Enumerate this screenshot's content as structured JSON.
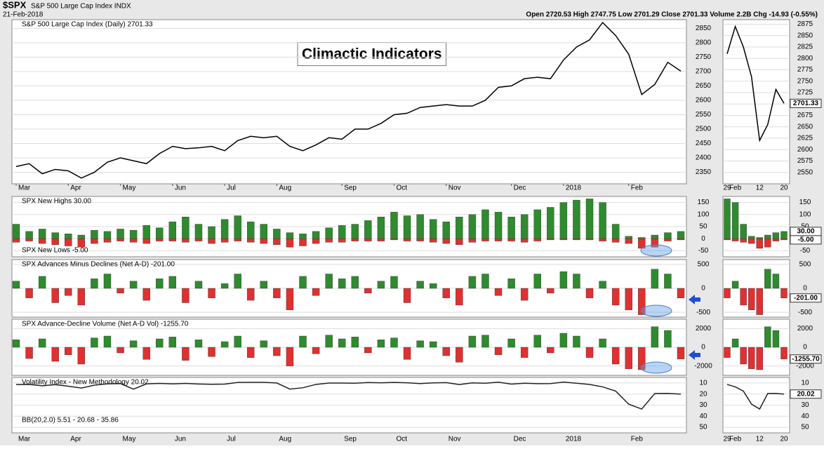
{
  "header": {
    "symbol": "$SPX",
    "name": "S&P 500 Large Cap Index INDX",
    "date": "21-Feb-2018",
    "quote": "Open 2720.53  High 2747.75  Low 2701.29  Close 2701.33  Volume 2.2B  Chg -14.93 (-0.55%)"
  },
  "annotation": "Climactic Indicators",
  "x_labels": [
    "Mar",
    null,
    null,
    null,
    "Apr",
    null,
    null,
    null,
    "May",
    null,
    null,
    null,
    "Jun",
    null,
    null,
    null,
    "Jul",
    null,
    null,
    null,
    "Aug",
    null,
    null,
    null,
    null,
    "Sep",
    null,
    null,
    null,
    "Oct",
    null,
    null,
    null,
    "Nov",
    null,
    null,
    null,
    null,
    "Dec",
    null,
    null,
    null,
    "2018",
    null,
    null,
    null,
    null,
    "Feb",
    null,
    null,
    null,
    null
  ],
  "zoom_x_labels": [
    "29",
    "Feb",
    null,
    null,
    "12",
    null,
    null,
    "20"
  ],
  "chart_data": [
    {
      "type": "line",
      "title": "S&P 500 Large Cap Index (Daily) 2701.33",
      "color": "#000000",
      "values": [
        2370,
        2380,
        2345,
        2360,
        2355,
        2330,
        2350,
        2385,
        2400,
        2390,
        2380,
        2415,
        2440,
        2432,
        2435,
        2440,
        2425,
        2460,
        2475,
        2470,
        2475,
        2440,
        2425,
        2445,
        2470,
        2465,
        2500,
        2500,
        2520,
        2550,
        2555,
        2575,
        2580,
        2585,
        2580,
        2580,
        2600,
        2645,
        2650,
        2675,
        2680,
        2675,
        2740,
        2785,
        2810,
        2870,
        2825,
        2760,
        2620,
        2655,
        2732,
        2701.33
      ],
      "ylim": [
        2310,
        2880
      ],
      "yticks": [
        2350,
        2400,
        2450,
        2500,
        2550,
        2600,
        2650,
        2700,
        2750,
        2800,
        2850
      ],
      "zoom_ylim": [
        2525,
        2885
      ],
      "zoom_yticks": [
        2550,
        2575,
        2600,
        2625,
        2650,
        2675,
        2700,
        2725,
        2750,
        2775,
        2800,
        2825,
        2850,
        2875
      ]
    },
    {
      "type": "bar",
      "series": [
        {
          "name": "SPX New Highs 30.00",
          "color": "#2e8b2e",
          "last_label": "30.00",
          "values": [
            60,
            30,
            40,
            25,
            20,
            15,
            35,
            30,
            40,
            35,
            55,
            45,
            70,
            90,
            60,
            50,
            80,
            95,
            70,
            60,
            40,
            25,
            20,
            30,
            45,
            55,
            60,
            75,
            90,
            110,
            95,
            100,
            80,
            70,
            90,
            100,
            120,
            110,
            90,
            100,
            120,
            130,
            150,
            160,
            165,
            150,
            60,
            10,
            5,
            15,
            25,
            30
          ]
        },
        {
          "name": "SPX New Lows -5.00",
          "color": "#e03030",
          "last_label": "-5.00",
          "values": [
            -15,
            -10,
            -20,
            -25,
            -30,
            -35,
            -20,
            -15,
            -10,
            -15,
            -20,
            -10,
            -10,
            -15,
            -10,
            -20,
            -15,
            -10,
            -15,
            -20,
            -25,
            -35,
            -30,
            -20,
            -15,
            -15,
            -10,
            -10,
            -10,
            -5,
            -10,
            -10,
            -15,
            -20,
            -25,
            -15,
            -10,
            -10,
            -10,
            -15,
            -10,
            -5,
            -5,
            -5,
            -5,
            -10,
            -15,
            -20,
            -40,
            -35,
            -10,
            -5
          ]
        }
      ],
      "ylim": [
        -75,
        175
      ],
      "yticks": [
        -50,
        0,
        50,
        100,
        150
      ]
    },
    {
      "type": "bar",
      "series": [
        {
          "name": "SPX Advances Minus Declines (Net A-D) -201.00",
          "color": "#2e8b2e",
          "negative_color": "#e03030",
          "last_label": "-201.00",
          "values": [
            150,
            -200,
            250,
            -300,
            -150,
            -350,
            200,
            300,
            -100,
            150,
            -250,
            200,
            250,
            -300,
            150,
            -200,
            100,
            300,
            -250,
            150,
            -200,
            -450,
            250,
            -150,
            300,
            200,
            250,
            -100,
            150,
            250,
            -300,
            150,
            100,
            -200,
            -350,
            250,
            300,
            -150,
            200,
            -250,
            300,
            -100,
            350,
            300,
            -200,
            150,
            -350,
            -450,
            -550,
            400,
            300,
            -201
          ]
        }
      ],
      "ylim": [
        -600,
        600
      ],
      "yticks": [
        -500,
        0,
        500
      ]
    },
    {
      "type": "bar",
      "series": [
        {
          "name": "SPX Advance-Decline Volume (Net A-D Vol) -1255.70",
          "color": "#2e8b2e",
          "negative_color": "#e03030",
          "last_label": "-1255.70",
          "values": [
            800,
            -1200,
            900,
            -1500,
            -800,
            -1800,
            1000,
            1200,
            -600,
            700,
            -1300,
            900,
            1100,
            -1400,
            800,
            -1000,
            600,
            1200,
            -1100,
            700,
            -900,
            -2000,
            1200,
            -700,
            1300,
            900,
            1100,
            -600,
            800,
            1000,
            -1300,
            700,
            600,
            -900,
            -1600,
            1200,
            1300,
            -800,
            900,
            -1100,
            1300,
            -600,
            1500,
            1200,
            -1100,
            900,
            -1800,
            -2300,
            -2400,
            2200,
            1800,
            -1255.7
          ]
        }
      ],
      "ylim": [
        -3000,
        3000
      ],
      "yticks": [
        -2000,
        0,
        2000
      ]
    },
    {
      "type": "line",
      "y_inverted": true,
      "bb_label": "BB(20,2.0) 5.51 - 20.68 - 35.86",
      "series": [
        {
          "name": "Volatility Index - New Methodology 20.02",
          "color": "#222222",
          "last_label": "20.02",
          "values": [
            11.4,
            11.3,
            12.5,
            11.5,
            12.9,
            14.6,
            12.0,
            10.8,
            10.5,
            15.6,
            10.8,
            10.4,
            10.8,
            10.4,
            10.9,
            11.2,
            11.0,
            9.5,
            9.4,
            9.4,
            10.0,
            15.5,
            14.3,
            11.3,
            10.1,
            10.1,
            10.2,
            9.6,
            9.8,
            9.5,
            9.8,
            10.5,
            9.9,
            9.7,
            11.4,
            9.9,
            10.2,
            9.3,
            11.0,
            10.2,
            10.6,
            10.5,
            9.2,
            10.2,
            11.3,
            13.5,
            17.3,
            29.1,
            33.5,
            19.5,
            19.4,
            20.02
          ]
        }
      ],
      "ylim": [
        5,
        55
      ],
      "yticks": [
        10,
        20,
        30,
        40,
        50
      ]
    }
  ]
}
